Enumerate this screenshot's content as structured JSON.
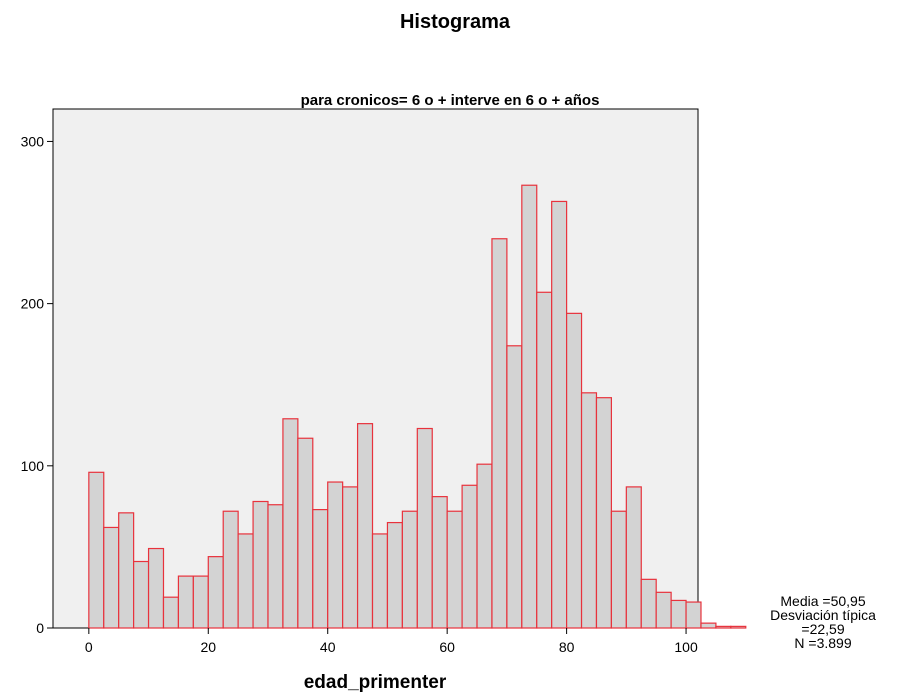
{
  "chart_data": {
    "type": "bar",
    "title": "Histograma",
    "subtitle": "para cronicos= 6 o + interve en 6 o + años",
    "xlabel": "edad_primenter",
    "ylabel": "",
    "bin_width": 2.5,
    "x_start": 0,
    "xlim": [
      -6,
      102
    ],
    "ylim": [
      0,
      320
    ],
    "xticks": [
      "0",
      "20",
      "40",
      "60",
      "80",
      "100"
    ],
    "yticks": [
      "0",
      "100",
      "200",
      "300"
    ],
    "grid": false,
    "values": [
      96,
      62,
      71,
      41,
      49,
      19,
      32,
      32,
      44,
      72,
      58,
      78,
      76,
      129,
      117,
      73,
      90,
      87,
      126,
      58,
      65,
      72,
      123,
      81,
      72,
      88,
      101,
      240,
      174,
      273,
      207,
      263,
      194,
      145,
      142,
      72,
      87,
      30,
      22,
      17,
      16,
      3,
      1,
      1
    ],
    "colors": {
      "bar_fill": "#d3d3d3",
      "bar_edge": "#e8323c",
      "plot_bg": "#f0f0f0",
      "frame": "#000000"
    },
    "stats": {
      "media": "Media =50,95",
      "desviacion_label": "Desviación típica",
      "desviacion_value": "=22,59",
      "n": "N =3.899"
    }
  }
}
